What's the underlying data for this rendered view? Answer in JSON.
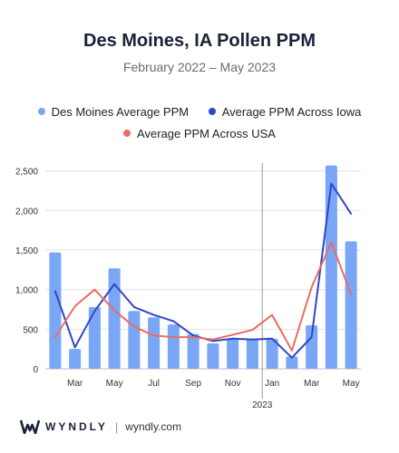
{
  "header": {
    "title": "Des Moines, IA Pollen PPM",
    "subtitle": "February 2022 – May 2023"
  },
  "colors": {
    "bar": "#7aa7f5",
    "iowa_line": "#2f46c8",
    "usa_line": "#ea6d61",
    "grid": "#e2e2e2",
    "axis_text": "#333333"
  },
  "chart_data": {
    "type": "bar",
    "categories": [
      "Feb 2022",
      "Mar 2022",
      "Apr 2022",
      "May 2022",
      "Jun 2022",
      "Jul 2022",
      "Aug 2022",
      "Sep 2022",
      "Oct 2022",
      "Nov 2022",
      "Dec 2022",
      "Jan 2023",
      "Feb 2023",
      "Mar 2023",
      "Apr 2023",
      "May 2023"
    ],
    "series": [
      {
        "name": "Des Moines Average PPM",
        "kind": "bar",
        "color": "#7aa7f5",
        "values": [
          1470,
          250,
          780,
          1270,
          730,
          650,
          560,
          440,
          320,
          380,
          380,
          380,
          155,
          550,
          2570,
          1610
        ]
      },
      {
        "name": "Average PPM Across Iowa",
        "kind": "line",
        "color": "#2f46c8",
        "values": [
          980,
          270,
          730,
          1070,
          780,
          680,
          600,
          420,
          350,
          380,
          370,
          380,
          140,
          400,
          2340,
          1960
        ]
      },
      {
        "name": "Average PPM Across USA",
        "kind": "line",
        "color": "#ea6d61",
        "values": [
          400,
          790,
          1000,
          740,
          530,
          420,
          400,
          400,
          370,
          430,
          490,
          680,
          230,
          1030,
          1600,
          940
        ]
      }
    ],
    "y_ticks": [
      "0",
      "500",
      "1,000",
      "1,500",
      "2,000",
      "2,500"
    ],
    "ylim": [
      0,
      2600
    ],
    "x_ticks": [
      {
        "index": 1,
        "label": "Mar"
      },
      {
        "index": 3,
        "label": "May"
      },
      {
        "index": 5,
        "label": "Jul"
      },
      {
        "index": 7,
        "label": "Sep"
      },
      {
        "index": 9,
        "label": "Nov"
      },
      {
        "index": 11,
        "label": "Jan"
      },
      {
        "index": 13,
        "label": "Mar"
      },
      {
        "index": 15,
        "label": "May"
      }
    ],
    "year_marker": {
      "index": 11,
      "label": "2023"
    },
    "grid": true,
    "legend_position": "top"
  },
  "footer": {
    "brand": "WYNDLY",
    "separator": "|",
    "site": "wyndly.com"
  }
}
